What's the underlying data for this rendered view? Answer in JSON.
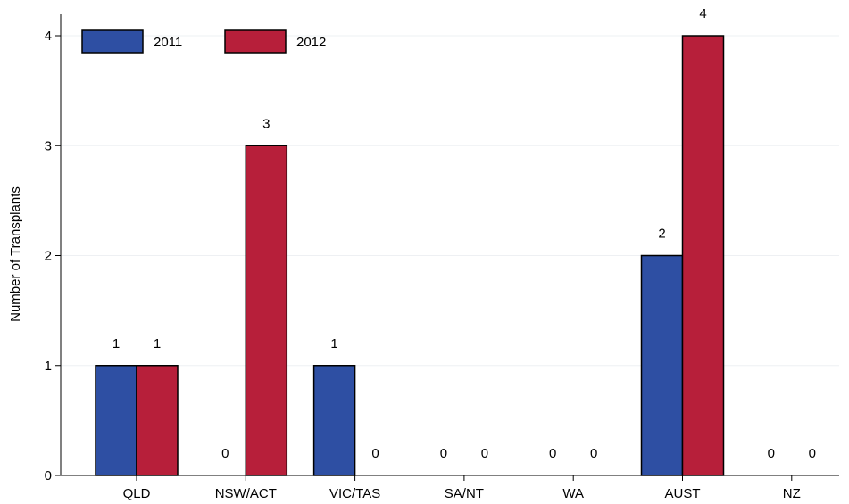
{
  "chart_data": {
    "type": "bar",
    "title": "",
    "xlabel": "",
    "ylabel": "Number of Transplants",
    "ylim": [
      0,
      4
    ],
    "yticks": [
      "0",
      "1",
      "2",
      "3",
      "4"
    ],
    "grid": true,
    "legend_position": "top-left",
    "categories": [
      "QLD",
      "NSW/ACT",
      "VIC/TAS",
      "SA/NT",
      "WA",
      "AUST",
      "NZ"
    ],
    "series": [
      {
        "name": "2011",
        "color": "#2e4fa3",
        "values": [
          1,
          0,
          1,
          0,
          0,
          2,
          0
        ]
      },
      {
        "name": "2012",
        "color": "#b71f3a",
        "values": [
          1,
          3,
          0,
          0,
          0,
          4,
          0
        ]
      }
    ]
  }
}
